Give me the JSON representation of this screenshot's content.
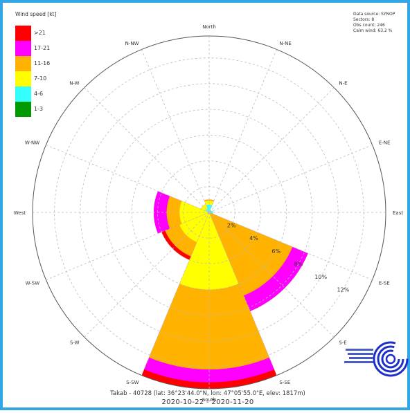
{
  "legend": {
    "title": "Wind speed [kt]",
    "items": [
      {
        "label": ">21",
        "color": "#ff0000"
      },
      {
        "label": "17-21",
        "color": "#ff00ff"
      },
      {
        "label": "11-16",
        "color": "#ffb300"
      },
      {
        "label": "7-10",
        "color": "#ffff00"
      },
      {
        "label": "4-6",
        "color": "#33ffff"
      },
      {
        "label": "1-3",
        "color": "#009900"
      }
    ]
  },
  "info": {
    "source": "Data source: SYNOP",
    "sectors": "Sectors: 8",
    "obs_count": "Obs count: 246",
    "calm_wind": "Calm wind: 63.2 %"
  },
  "directions": [
    "North",
    "N-NE",
    "N-E",
    "E-NE",
    "East",
    "E-SE",
    "S-E",
    "S-SE",
    "South",
    "S-SW",
    "S-W",
    "W-SW",
    "West",
    "W-NW",
    "N-W",
    "N-NW"
  ],
  "footer": {
    "station": "Takab - 40728 (lat: 36°23'44.0\"N, lon: 47°05'55.0\"E, elev: 1817m)",
    "period": "2020-10-22 - 2020-11-20"
  },
  "chart_data": {
    "type": "wind-rose",
    "sectors": [
      "N",
      "NE",
      "E",
      "SE",
      "S",
      "SW",
      "W",
      "NW"
    ],
    "speed_bins": [
      "1-3",
      "4-6",
      "7-10",
      "11-16",
      "17-21",
      ">21"
    ],
    "radial_unit": "%",
    "radial_ticks": [
      "2%",
      "4%",
      "6%",
      "8%",
      "10%",
      "12%"
    ],
    "radial_tick_values": [
      2,
      4,
      6,
      8,
      10,
      12
    ],
    "radial_max": 13.7,
    "cumulative_percent": {
      "N": [
        0,
        0.6,
        0.9,
        1.0,
        1.0,
        1.0
      ],
      "NE": [
        0,
        0.2,
        0.2,
        0.2,
        0.2,
        0.2
      ],
      "E": [
        0,
        0.3,
        0.3,
        0.3,
        0.3,
        0.3
      ],
      "SE": [
        0,
        0,
        0,
        7.0,
        8.3,
        8.3
      ],
      "S": [
        0,
        0,
        6.0,
        12.2,
        13.2,
        13.7
      ],
      "SW": [
        0,
        0,
        2.5,
        3.7,
        3.7,
        4.0
      ],
      "W": [
        0,
        0,
        2.3,
        3.3,
        4.3,
        4.3
      ],
      "NW": [
        0,
        0.3,
        0.7,
        0.7,
        0.7,
        0.7
      ]
    }
  }
}
